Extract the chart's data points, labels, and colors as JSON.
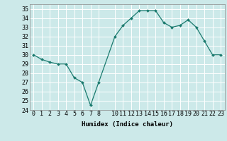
{
  "x": [
    0,
    1,
    2,
    3,
    4,
    5,
    6,
    7,
    8,
    10,
    11,
    12,
    13,
    14,
    15,
    16,
    17,
    18,
    19,
    20,
    21,
    22,
    23
  ],
  "y": [
    30.0,
    29.5,
    29.2,
    29.0,
    29.0,
    27.5,
    27.0,
    24.5,
    27.0,
    32.0,
    33.2,
    34.0,
    34.8,
    34.8,
    34.8,
    33.5,
    33.0,
    33.2,
    33.8,
    33.0,
    31.5,
    30.0,
    30.0
  ],
  "line_color": "#1a7a6e",
  "marker": "D",
  "marker_size": 2.0,
  "bg_color": "#cce9e9",
  "grid_color": "#b0d8d8",
  "xlabel": "Humidex (Indice chaleur)",
  "ylim": [
    24,
    35.5
  ],
  "xlim": [
    -0.5,
    23.5
  ],
  "yticks": [
    24,
    25,
    26,
    27,
    28,
    29,
    30,
    31,
    32,
    33,
    34,
    35
  ],
  "xticks": [
    0,
    1,
    2,
    3,
    4,
    5,
    6,
    7,
    8,
    10,
    11,
    12,
    13,
    14,
    15,
    16,
    17,
    18,
    19,
    20,
    21,
    22,
    23
  ],
  "label_fontsize": 6.5,
  "tick_fontsize": 6.0,
  "line_width": 0.9
}
